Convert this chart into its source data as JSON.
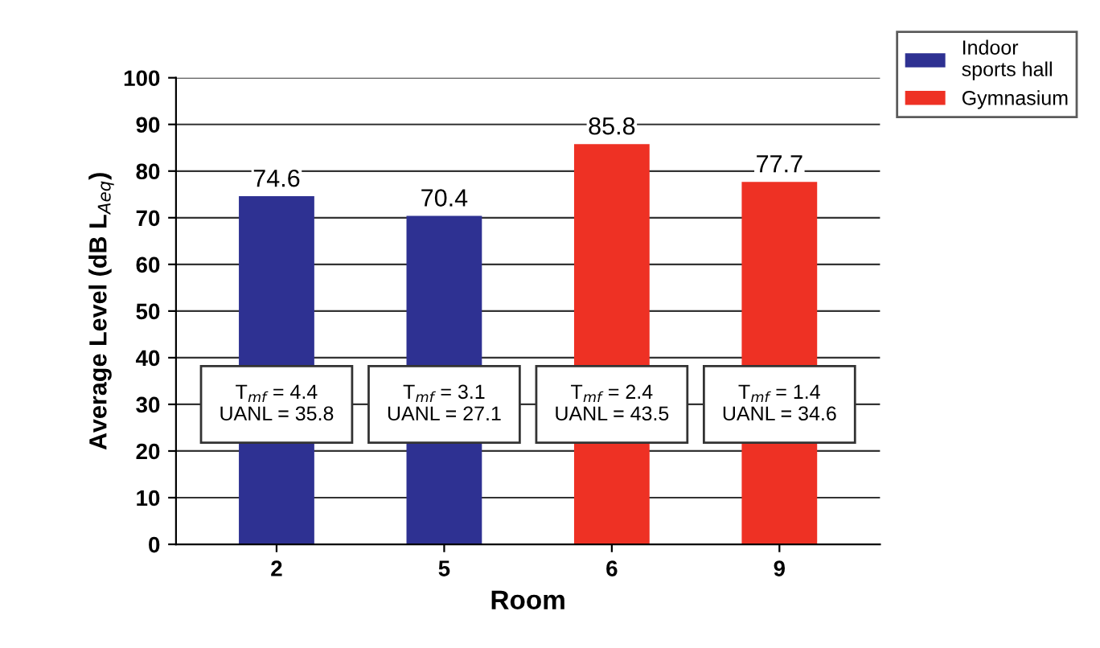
{
  "chart_data": {
    "type": "bar",
    "xlabel": "Room",
    "ylabel": "Average Level (dB L$_{Aeq}$)",
    "categories": [
      "2",
      "5",
      "6",
      "9"
    ],
    "series": [
      {
        "name": "Indoor\nsports hall",
        "color": "#2e3192",
        "values": [
          74.6,
          70.4,
          null,
          null
        ]
      },
      {
        "name": "Gymnasium",
        "color": "#ee3124",
        "values": [
          null,
          null,
          85.8,
          77.7
        ]
      }
    ],
    "ylim": [
      0,
      100
    ],
    "yticks": [
      0,
      10,
      20,
      30,
      40,
      50,
      60,
      70,
      80,
      90,
      100
    ],
    "grid": "y",
    "legend": "top right",
    "data_labels": true,
    "annotations": [
      "T$_{mf}$ = 4.4\nUANL = 35.8",
      "T$_{mf}$ = 3.1\nUANL = 27.1",
      "T$_{mf}$ = 2.4\nUANL = 43.5",
      "T$_{mf}$ = 1.4\nUANL = 34.6"
    ]
  }
}
